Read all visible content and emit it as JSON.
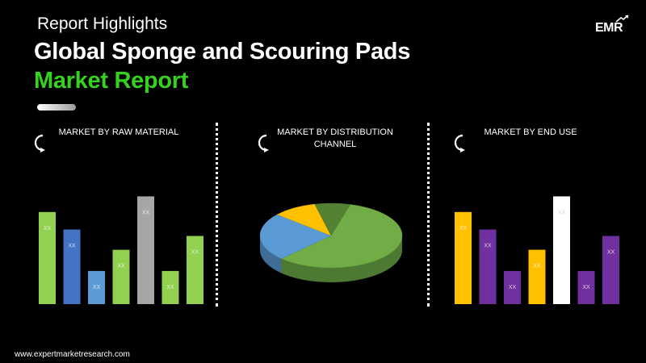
{
  "header": {
    "subtitle": "Report Highlights",
    "title_line1": "Global Sponge and Scouring Pads",
    "title_line2": "Market Report",
    "accent_color": "#35d21f"
  },
  "logo": {
    "text": "EMR"
  },
  "footer": {
    "url": "www.expertmarketresearch.com"
  },
  "panels": [
    {
      "title": "MARKET BY RAW MATERIAL"
    },
    {
      "title": "MARKET BY DISTRIBUTION CHANNEL"
    },
    {
      "title": "MARKET BY END USE"
    }
  ],
  "chart_data": [
    {
      "type": "bar",
      "title": "MARKET BY RAW MATERIAL",
      "categories": [
        "",
        "",
        "",
        "",
        "",
        "",
        ""
      ],
      "values": [
        100,
        81,
        36,
        59,
        117,
        36,
        74
      ],
      "labels": [
        "XX",
        "XX",
        "XX",
        "XX",
        "XX",
        "XX",
        "XX"
      ],
      "colors": [
        "#92d050",
        "#4472c4",
        "#5b9bd5",
        "#92d050",
        "#a6a6a6",
        "#92d050",
        "#92d050"
      ],
      "ylim": [
        0,
        120
      ]
    },
    {
      "type": "pie",
      "title": "MARKET BY DISTRIBUTION CHANNEL",
      "values": [
        58,
        24,
        10,
        8
      ],
      "colors": [
        "#70ad47",
        "#5b9bd5",
        "#ffc000",
        "#548235"
      ]
    },
    {
      "type": "bar",
      "title": "MARKET BY END USE",
      "categories": [
        "",
        "",
        "",
        "",
        "",
        "",
        ""
      ],
      "values": [
        100,
        81,
        36,
        59,
        117,
        36,
        74
      ],
      "labels": [
        "XX",
        "XX",
        "XX",
        "XX",
        "XX",
        "XX",
        "XX"
      ],
      "colors": [
        "#ffc000",
        "#7030a0",
        "#7030a0",
        "#ffc000",
        "#ffffff",
        "#7030a0",
        "#7030a0"
      ],
      "ylim": [
        0,
        120
      ]
    }
  ]
}
